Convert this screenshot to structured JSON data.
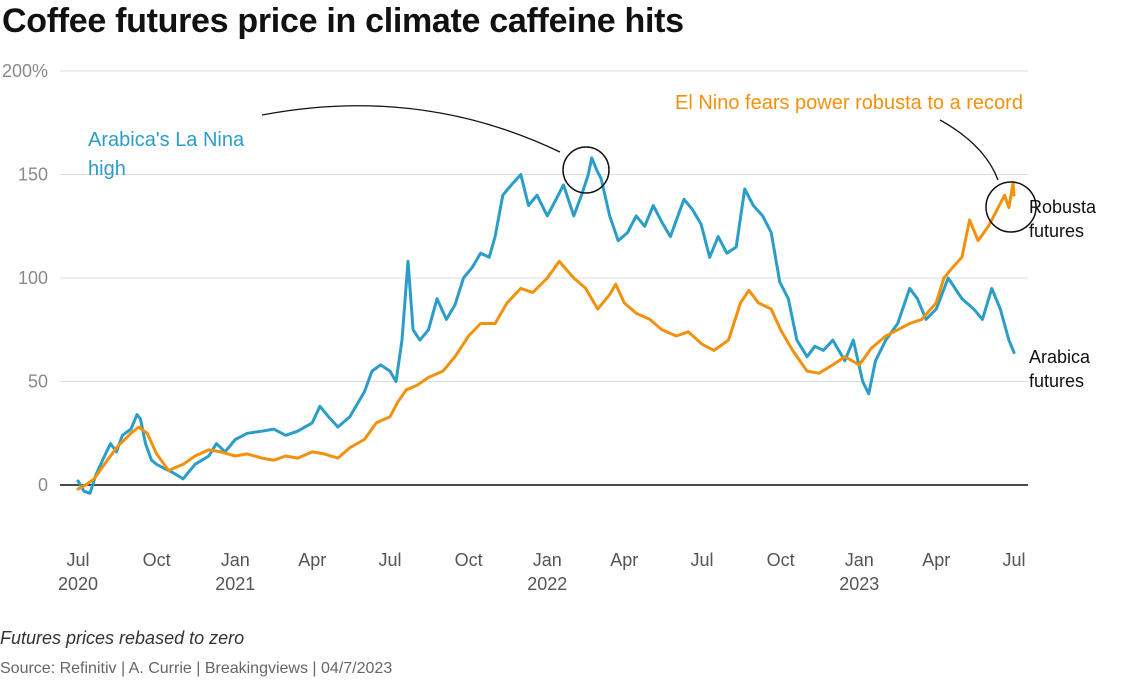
{
  "title": "Coffee futures price in climate caffeine hits",
  "note": "Futures prices rebased to zero",
  "source": "Source: Refinitiv | A. Currie | Breakingviews | 04/7/2023",
  "colors": {
    "arabica": "#2a9dc9",
    "robusta": "#f2920c",
    "annotation_line": "#111111",
    "grid": "#dddddd"
  },
  "annotations": {
    "arabica_high_line1": "Arabica's La Nina",
    "arabica_high_line2": "high",
    "robusta_record": "El Nino fears power robusta to a record"
  },
  "chart_data": {
    "type": "line",
    "title": "Coffee futures price in climate caffeine hits",
    "xlabel": "",
    "ylabel": "",
    "ylim": [
      0,
      200
    ],
    "yticks": [
      {
        "value": 200,
        "label": "200%"
      },
      {
        "value": 150,
        "label": "150"
      },
      {
        "value": 100,
        "label": "100"
      },
      {
        "value": 50,
        "label": "50"
      },
      {
        "value": 0,
        "label": "0"
      }
    ],
    "xlim": [
      "2020-07-01",
      "2023-07-01"
    ],
    "xticks": [
      {
        "date": "2020-07-01",
        "line1": "Jul",
        "line2": "2020"
      },
      {
        "date": "2020-10-01",
        "line1": "Oct",
        "line2": ""
      },
      {
        "date": "2021-01-01",
        "line1": "Jan",
        "line2": "2021"
      },
      {
        "date": "2021-04-01",
        "line1": "Apr",
        "line2": ""
      },
      {
        "date": "2021-07-01",
        "line1": "Jul",
        "line2": ""
      },
      {
        "date": "2021-10-01",
        "line1": "Oct",
        "line2": ""
      },
      {
        "date": "2022-01-01",
        "line1": "Jan",
        "line2": "2022"
      },
      {
        "date": "2022-04-01",
        "line1": "Apr",
        "line2": ""
      },
      {
        "date": "2022-07-01",
        "line1": "Jul",
        "line2": ""
      },
      {
        "date": "2022-10-01",
        "line1": "Oct",
        "line2": ""
      },
      {
        "date": "2023-01-01",
        "line1": "Jan",
        "line2": "2023"
      },
      {
        "date": "2023-04-01",
        "line1": "Apr",
        "line2": ""
      },
      {
        "date": "2023-07-01",
        "line1": "Jul",
        "line2": ""
      }
    ],
    "grid": true,
    "series": [
      {
        "name": "Arabica futures",
        "label_lines": [
          "Arabica",
          "futures"
        ],
        "color": "#2a9dc9",
        "points": [
          [
            "2020-07-01",
            2
          ],
          [
            "2020-07-08",
            -3
          ],
          [
            "2020-07-15",
            -4
          ],
          [
            "2020-07-22",
            5
          ],
          [
            "2020-08-01",
            14
          ],
          [
            "2020-08-08",
            20
          ],
          [
            "2020-08-15",
            16
          ],
          [
            "2020-08-22",
            24
          ],
          [
            "2020-09-01",
            27
          ],
          [
            "2020-09-08",
            34
          ],
          [
            "2020-09-12",
            32
          ],
          [
            "2020-09-18",
            20
          ],
          [
            "2020-09-25",
            12
          ],
          [
            "2020-10-01",
            10
          ],
          [
            "2020-10-10",
            8
          ],
          [
            "2020-10-20",
            6
          ],
          [
            "2020-11-01",
            3
          ],
          [
            "2020-11-15",
            10
          ],
          [
            "2020-12-01",
            14
          ],
          [
            "2020-12-10",
            20
          ],
          [
            "2020-12-20",
            16
          ],
          [
            "2021-01-01",
            22
          ],
          [
            "2021-01-15",
            25
          ],
          [
            "2021-02-01",
            26
          ],
          [
            "2021-02-15",
            27
          ],
          [
            "2021-03-01",
            24
          ],
          [
            "2021-03-15",
            26
          ],
          [
            "2021-04-01",
            30
          ],
          [
            "2021-04-10",
            38
          ],
          [
            "2021-04-20",
            33
          ],
          [
            "2021-05-01",
            28
          ],
          [
            "2021-05-15",
            33
          ],
          [
            "2021-06-01",
            45
          ],
          [
            "2021-06-10",
            55
          ],
          [
            "2021-06-20",
            58
          ],
          [
            "2021-07-01",
            55
          ],
          [
            "2021-07-08",
            50
          ],
          [
            "2021-07-15",
            70
          ],
          [
            "2021-07-22",
            108
          ],
          [
            "2021-07-28",
            75
          ],
          [
            "2021-08-05",
            70
          ],
          [
            "2021-08-15",
            75
          ],
          [
            "2021-08-25",
            90
          ],
          [
            "2021-09-05",
            80
          ],
          [
            "2021-09-15",
            87
          ],
          [
            "2021-09-25",
            100
          ],
          [
            "2021-10-05",
            105
          ],
          [
            "2021-10-15",
            112
          ],
          [
            "2021-10-25",
            110
          ],
          [
            "2021-11-01",
            120
          ],
          [
            "2021-11-10",
            140
          ],
          [
            "2021-11-20",
            145
          ],
          [
            "2021-12-01",
            150
          ],
          [
            "2021-12-10",
            135
          ],
          [
            "2021-12-20",
            140
          ],
          [
            "2022-01-01",
            130
          ],
          [
            "2022-01-10",
            137
          ],
          [
            "2022-01-20",
            145
          ],
          [
            "2022-02-01",
            130
          ],
          [
            "2022-02-10",
            140
          ],
          [
            "2022-02-18",
            150
          ],
          [
            "2022-02-22",
            158
          ],
          [
            "2022-02-28",
            152
          ],
          [
            "2022-03-05",
            148
          ],
          [
            "2022-03-15",
            130
          ],
          [
            "2022-03-25",
            118
          ],
          [
            "2022-04-05",
            122
          ],
          [
            "2022-04-15",
            130
          ],
          [
            "2022-04-25",
            125
          ],
          [
            "2022-05-05",
            135
          ],
          [
            "2022-05-15",
            127
          ],
          [
            "2022-05-25",
            120
          ],
          [
            "2022-06-01",
            128
          ],
          [
            "2022-06-10",
            138
          ],
          [
            "2022-06-20",
            133
          ],
          [
            "2022-06-30",
            126
          ],
          [
            "2022-07-10",
            110
          ],
          [
            "2022-07-20",
            120
          ],
          [
            "2022-07-30",
            112
          ],
          [
            "2022-08-10",
            115
          ],
          [
            "2022-08-20",
            143
          ],
          [
            "2022-08-30",
            135
          ],
          [
            "2022-09-10",
            130
          ],
          [
            "2022-09-20",
            122
          ],
          [
            "2022-09-30",
            98
          ],
          [
            "2022-10-10",
            90
          ],
          [
            "2022-10-20",
            70
          ],
          [
            "2022-11-01",
            62
          ],
          [
            "2022-11-10",
            67
          ],
          [
            "2022-11-20",
            65
          ],
          [
            "2022-12-01",
            70
          ],
          [
            "2022-12-15",
            60
          ],
          [
            "2022-12-25",
            70
          ],
          [
            "2023-01-05",
            50
          ],
          [
            "2023-01-12",
            44
          ],
          [
            "2023-01-20",
            60
          ],
          [
            "2023-02-01",
            70
          ],
          [
            "2023-02-15",
            78
          ],
          [
            "2023-03-01",
            95
          ],
          [
            "2023-03-10",
            90
          ],
          [
            "2023-03-20",
            80
          ],
          [
            "2023-04-01",
            85
          ],
          [
            "2023-04-15",
            100
          ],
          [
            "2023-05-01",
            90
          ],
          [
            "2023-05-15",
            85
          ],
          [
            "2023-05-25",
            80
          ],
          [
            "2023-06-05",
            95
          ],
          [
            "2023-06-15",
            85
          ],
          [
            "2023-06-25",
            70
          ],
          [
            "2023-07-01",
            64
          ]
        ]
      },
      {
        "name": "Robusta futures",
        "label_lines": [
          "Robusta",
          "futures"
        ],
        "color": "#f2920c",
        "points": [
          [
            "2020-07-01",
            -2
          ],
          [
            "2020-07-10",
            0
          ],
          [
            "2020-07-20",
            3
          ],
          [
            "2020-08-01",
            10
          ],
          [
            "2020-08-15",
            18
          ],
          [
            "2020-09-01",
            25
          ],
          [
            "2020-09-10",
            28
          ],
          [
            "2020-09-20",
            25
          ],
          [
            "2020-10-01",
            15
          ],
          [
            "2020-10-15",
            7
          ],
          [
            "2020-11-01",
            10
          ],
          [
            "2020-11-15",
            14
          ],
          [
            "2020-12-01",
            17
          ],
          [
            "2020-12-15",
            16
          ],
          [
            "2021-01-01",
            14
          ],
          [
            "2021-01-15",
            15
          ],
          [
            "2021-02-01",
            13
          ],
          [
            "2021-02-15",
            12
          ],
          [
            "2021-03-01",
            14
          ],
          [
            "2021-03-15",
            13
          ],
          [
            "2021-04-01",
            16
          ],
          [
            "2021-04-15",
            15
          ],
          [
            "2021-05-01",
            13
          ],
          [
            "2021-05-15",
            18
          ],
          [
            "2021-06-01",
            22
          ],
          [
            "2021-06-15",
            30
          ],
          [
            "2021-07-01",
            33
          ],
          [
            "2021-07-10",
            40
          ],
          [
            "2021-07-20",
            46
          ],
          [
            "2021-08-01",
            48
          ],
          [
            "2021-08-15",
            52
          ],
          [
            "2021-09-01",
            55
          ],
          [
            "2021-09-15",
            62
          ],
          [
            "2021-10-01",
            72
          ],
          [
            "2021-10-15",
            78
          ],
          [
            "2021-11-01",
            78
          ],
          [
            "2021-11-15",
            88
          ],
          [
            "2021-12-01",
            95
          ],
          [
            "2021-12-15",
            93
          ],
          [
            "2022-01-01",
            100
          ],
          [
            "2022-01-15",
            108
          ],
          [
            "2022-02-01",
            100
          ],
          [
            "2022-02-15",
            95
          ],
          [
            "2022-03-01",
            85
          ],
          [
            "2022-03-15",
            92
          ],
          [
            "2022-03-22",
            97
          ],
          [
            "2022-04-01",
            88
          ],
          [
            "2022-04-15",
            83
          ],
          [
            "2022-05-01",
            80
          ],
          [
            "2022-05-15",
            75
          ],
          [
            "2022-06-01",
            72
          ],
          [
            "2022-06-15",
            74
          ],
          [
            "2022-07-01",
            68
          ],
          [
            "2022-07-15",
            65
          ],
          [
            "2022-08-01",
            70
          ],
          [
            "2022-08-15",
            88
          ],
          [
            "2022-08-25",
            94
          ],
          [
            "2022-09-05",
            88
          ],
          [
            "2022-09-20",
            85
          ],
          [
            "2022-10-01",
            75
          ],
          [
            "2022-10-15",
            65
          ],
          [
            "2022-11-01",
            55
          ],
          [
            "2022-11-15",
            54
          ],
          [
            "2022-12-01",
            58
          ],
          [
            "2022-12-15",
            62
          ],
          [
            "2023-01-01",
            58
          ],
          [
            "2023-01-15",
            66
          ],
          [
            "2023-02-01",
            72
          ],
          [
            "2023-02-15",
            75
          ],
          [
            "2023-03-01",
            78
          ],
          [
            "2023-03-15",
            80
          ],
          [
            "2023-04-01",
            88
          ],
          [
            "2023-04-10",
            100
          ],
          [
            "2023-04-20",
            105
          ],
          [
            "2023-05-01",
            110
          ],
          [
            "2023-05-10",
            128
          ],
          [
            "2023-05-20",
            118
          ],
          [
            "2023-06-01",
            125
          ],
          [
            "2023-06-10",
            132
          ],
          [
            "2023-06-20",
            140
          ],
          [
            "2023-06-25",
            134
          ],
          [
            "2023-06-30",
            146
          ],
          [
            "2023-07-01",
            140
          ]
        ]
      }
    ]
  }
}
